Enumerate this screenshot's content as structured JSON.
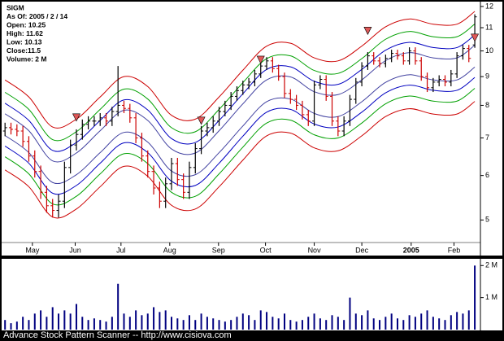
{
  "chart_data": [
    {
      "type": "ohlc",
      "info_lines": [
        "SIGM",
        "As Of: 2005 / 2 / 14",
        "Open: 10.25",
        "High: 11.62",
        "Low: 10.13",
        "Close:11.5",
        "Volume: 2 M"
      ],
      "xlim": [
        -0.3,
        79.4
      ],
      "xticks": [
        {
          "value": 4.6,
          "label": "May"
        },
        {
          "value": 11.8,
          "label": "Jun"
        },
        {
          "value": 19.5,
          "label": "Jul"
        },
        {
          "value": 27.7,
          "label": "Aug"
        },
        {
          "value": 35.9,
          "label": "Sep"
        },
        {
          "value": 43.8,
          "label": "Oct"
        },
        {
          "value": 52,
          "label": "Nov"
        },
        {
          "value": 60,
          "label": "Dec"
        },
        {
          "value": 68.3,
          "label": "2005"
        },
        {
          "value": 75.5,
          "label": "Feb"
        }
      ],
      "ylim": [
        4.35,
        12.2
      ],
      "yticks": [
        5,
        6,
        7,
        8,
        9,
        10,
        11,
        12
      ],
      "log_scale": true,
      "grid": false,
      "up_color": "#000000",
      "down_color": "#cc0000",
      "open": [
        7.2,
        7.3,
        7.25,
        7.2,
        6.9,
        6.5,
        6.1,
        5.6,
        5.3,
        5.2,
        5.4,
        6.2,
        6.8,
        7.1,
        7.4,
        7.5,
        7.5,
        7.6,
        7.5,
        7.8,
        8.0,
        7.9,
        7.6,
        7.0,
        6.5,
        6.1,
        5.7,
        5.4,
        5.8,
        6.3,
        5.9,
        5.6,
        6.2,
        6.7,
        7.2,
        7.3,
        7.5,
        7.8,
        8.0,
        8.3,
        8.5,
        8.7,
        8.8,
        9.1,
        9.4,
        9.6,
        9.3,
        9.0,
        8.4,
        8.2,
        8.0,
        7.7,
        7.5,
        8.7,
        8.9,
        8.3,
        7.5,
        7.2,
        7.5,
        8.2,
        8.8,
        9.4,
        9.8,
        9.6,
        9.5,
        9.7,
        9.9,
        9.8,
        9.6,
        10.0,
        9.6,
        9.0,
        8.6,
        8.8,
        8.9,
        8.8,
        9.1,
        9.8,
        10.1,
        10.25
      ],
      "high": [
        7.45,
        7.45,
        7.4,
        7.35,
        7.05,
        6.65,
        6.25,
        5.75,
        5.45,
        5.55,
        6.35,
        6.95,
        7.25,
        7.55,
        7.65,
        7.65,
        7.75,
        7.75,
        7.95,
        9.4,
        8.15,
        8.05,
        7.75,
        7.15,
        6.65,
        6.25,
        5.85,
        5.95,
        6.45,
        6.45,
        6.05,
        6.35,
        6.85,
        7.35,
        7.45,
        7.65,
        7.95,
        8.15,
        8.45,
        8.65,
        8.85,
        8.95,
        9.25,
        9.55,
        9.75,
        9.75,
        9.45,
        9.15,
        8.55,
        8.35,
        8.15,
        7.85,
        8.85,
        9.05,
        9.05,
        8.45,
        7.65,
        7.65,
        8.35,
        8.95,
        9.55,
        9.95,
        9.95,
        9.75,
        9.85,
        10.05,
        10.05,
        9.95,
        10.15,
        10.15,
        9.75,
        9.15,
        8.95,
        9.05,
        9.05,
        9.25,
        9.95,
        10.25,
        10.25,
        11.62
      ],
      "low": [
        7.05,
        7.1,
        7.05,
        6.75,
        6.35,
        5.95,
        5.45,
        5.15,
        5.05,
        5.05,
        5.25,
        6.05,
        6.65,
        6.95,
        7.25,
        7.35,
        7.35,
        7.35,
        7.35,
        7.65,
        7.75,
        7.45,
        6.85,
        6.35,
        5.95,
        5.55,
        5.25,
        5.25,
        5.65,
        5.75,
        5.45,
        5.45,
        6.05,
        6.55,
        7.05,
        7.15,
        7.35,
        7.65,
        7.85,
        8.15,
        8.35,
        8.55,
        8.65,
        8.95,
        9.25,
        9.15,
        8.85,
        8.25,
        8.05,
        7.85,
        7.55,
        7.35,
        7.35,
        8.55,
        8.15,
        7.35,
        7.05,
        7.05,
        7.35,
        8.05,
        8.65,
        9.25,
        9.45,
        9.35,
        9.35,
        9.55,
        9.65,
        9.45,
        9.45,
        9.45,
        8.85,
        8.45,
        8.45,
        8.65,
        8.65,
        8.65,
        8.95,
        9.65,
        9.55,
        10.13
      ],
      "close": [
        7.3,
        7.25,
        7.2,
        6.9,
        6.5,
        6.1,
        5.6,
        5.3,
        5.2,
        5.4,
        6.2,
        6.8,
        7.1,
        7.4,
        7.5,
        7.5,
        7.6,
        7.5,
        7.8,
        8.0,
        7.9,
        7.6,
        7.0,
        6.5,
        6.1,
        5.7,
        5.4,
        5.8,
        6.3,
        5.9,
        5.6,
        6.2,
        6.7,
        7.2,
        7.3,
        7.5,
        7.8,
        8.0,
        8.3,
        8.5,
        8.7,
        8.8,
        9.1,
        9.4,
        9.6,
        9.3,
        9.0,
        8.4,
        8.2,
        8.0,
        7.7,
        7.5,
        8.7,
        8.9,
        8.3,
        7.5,
        7.2,
        7.5,
        8.2,
        8.8,
        9.4,
        9.8,
        9.6,
        9.5,
        9.7,
        9.9,
        9.8,
        9.6,
        10.0,
        9.6,
        9.0,
        8.6,
        8.8,
        8.9,
        8.8,
        9.1,
        9.8,
        10.1,
        9.7,
        11.5
      ],
      "lines": {
        "x": [
          0,
          4,
          8,
          12,
          16,
          20,
          24,
          28,
          32,
          36,
          40,
          44,
          48,
          52,
          56,
          60,
          64,
          68,
          72,
          76,
          79
        ],
        "series": [
          {
            "color": "#cc0000",
            "values": [
              8.88,
              8.28,
              7.32,
              7.56,
              8.28,
              9.0,
              8.64,
              7.68,
              7.56,
              8.28,
              9.24,
              10.2,
              10.32,
              9.72,
              9.6,
              10.2,
              11.04,
              11.4,
              11.16,
              11.16,
              11.76
            ]
          },
          {
            "color": "#00a000",
            "values": [
              8.44,
              7.87,
              6.95,
              7.18,
              7.87,
              8.55,
              8.21,
              7.3,
              7.18,
              7.87,
              8.78,
              9.69,
              9.8,
              9.23,
              9.12,
              9.69,
              10.49,
              10.83,
              10.6,
              10.6,
              11.17
            ]
          },
          {
            "color": "#0000c0",
            "values": [
              8.07,
              7.52,
              6.65,
              6.87,
              7.52,
              8.18,
              7.85,
              6.98,
              6.87,
              7.52,
              8.39,
              9.27,
              9.37,
              8.83,
              8.72,
              9.27,
              10.03,
              10.36,
              10.14,
              10.14,
              10.68
            ]
          },
          {
            "color": "#4040a0",
            "values": [
              7.73,
              7.21,
              6.37,
              6.58,
              7.21,
              7.84,
              7.52,
              6.69,
              6.58,
              7.21,
              8.05,
              8.88,
              8.99,
              8.46,
              8.36,
              8.88,
              9.61,
              9.93,
              9.72,
              9.72,
              10.24
            ]
          },
          {
            "color": "#4040a0",
            "values": [
              7.07,
              6.59,
              5.83,
              6.02,
              6.59,
              7.16,
              6.88,
              6.11,
              6.02,
              6.59,
              7.35,
              8.12,
              8.21,
              7.74,
              7.64,
              8.12,
              8.79,
              9.07,
              8.88,
              8.88,
              9.36
            ]
          },
          {
            "color": "#0000c0",
            "values": [
              6.77,
              6.31,
              5.58,
              5.76,
              6.31,
              6.86,
              6.59,
              5.86,
              5.76,
              6.31,
              7.05,
              7.78,
              7.87,
              7.41,
              7.32,
              7.78,
              8.42,
              8.69,
              8.51,
              8.51,
              8.97
            ]
          },
          {
            "color": "#00a000",
            "values": [
              6.48,
              6.04,
              5.34,
              5.51,
              6.04,
              6.56,
              6.3,
              5.6,
              5.51,
              6.04,
              6.74,
              7.44,
              7.53,
              7.09,
              7.0,
              7.44,
              8.05,
              8.31,
              8.14,
              8.14,
              8.58
            ]
          },
          {
            "color": "#cc0000",
            "values": [
              6.14,
              5.73,
              5.06,
              5.23,
              5.73,
              6.23,
              5.98,
              5.31,
              5.23,
              5.73,
              6.39,
              7.06,
              7.14,
              6.72,
              6.64,
              7.06,
              7.64,
              7.89,
              7.72,
              7.72,
              8.13
            ]
          }
        ]
      },
      "signals": {
        "color": "#e05858",
        "x": [
          12,
          33,
          43,
          61,
          79
        ],
        "values": [
          7.5,
          7.4,
          9.5,
          10.7,
          10.4
        ]
      }
    },
    {
      "type": "volume",
      "color": "#000080",
      "values": [
        0.3,
        0.2,
        0.25,
        0.4,
        0.3,
        0.5,
        0.6,
        0.4,
        0.7,
        0.5,
        0.6,
        0.5,
        0.8,
        0.4,
        0.3,
        0.35,
        0.3,
        0.25,
        0.4,
        1.43,
        0.5,
        0.4,
        0.6,
        0.45,
        0.5,
        0.7,
        0.55,
        0.6,
        0.4,
        0.35,
        0.3,
        0.45,
        0.3,
        0.5,
        0.4,
        0.35,
        0.3,
        0.25,
        0.3,
        0.4,
        0.5,
        0.45,
        0.3,
        0.6,
        0.55,
        0.4,
        0.35,
        0.5,
        0.3,
        0.25,
        0.3,
        0.4,
        0.5,
        0.35,
        0.3,
        0.45,
        0.4,
        0.3,
        1.0,
        0.5,
        0.45,
        0.6,
        0.35,
        0.3,
        0.4,
        0.5,
        0.35,
        0.3,
        0.45,
        0.4,
        0.5,
        0.6,
        0.4,
        0.35,
        0.3,
        0.45,
        0.55,
        0.5,
        0.6,
        2.0
      ],
      "xlim": [
        -0.3,
        79.4
      ],
      "ylim": [
        0,
        2.16
      ],
      "yticks": [
        {
          "value": 1,
          "label": "1 M"
        },
        {
          "value": 2,
          "label": "2 M"
        }
      ]
    }
  ],
  "footer": "Advance Stock Pattern Scanner -- http://www.cisiova.com"
}
